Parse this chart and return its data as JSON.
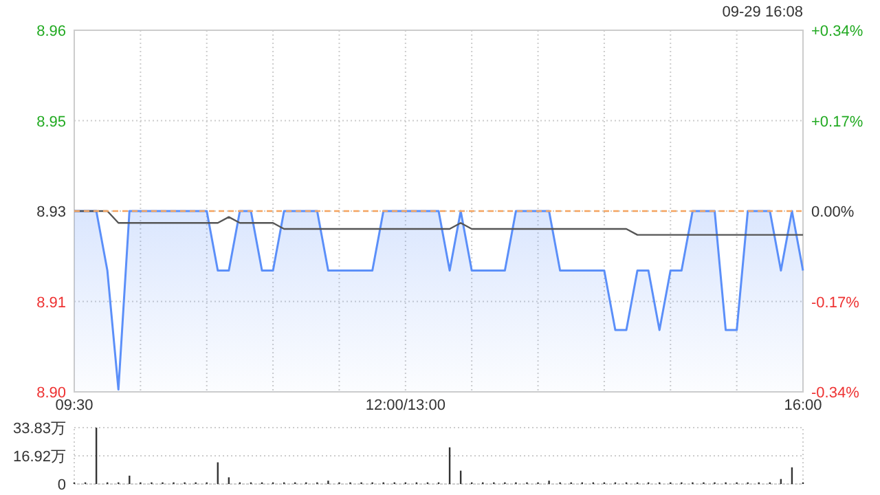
{
  "chart_data": [
    {
      "type": "line",
      "annotations": [
        "09-29 16:08"
      ],
      "categories": [
        "09:30",
        null,
        null,
        null,
        null,
        null,
        null,
        null,
        null,
        null,
        null,
        null,
        null,
        null,
        null,
        null,
        null,
        null,
        null,
        null,
        null,
        null,
        null,
        null,
        null,
        null,
        null,
        null,
        null,
        null,
        "12:00/13:00",
        null,
        null,
        null,
        null,
        null,
        null,
        null,
        null,
        null,
        null,
        null,
        null,
        null,
        null,
        null,
        null,
        null,
        null,
        null,
        null,
        null,
        null,
        null,
        null,
        null,
        null,
        null,
        null,
        null,
        null,
        null,
        null,
        null,
        null,
        null,
        "16:00"
      ],
      "ylim": [
        8.8996,
        8.9604
      ],
      "yticks": [
        {
          "value": 8.8996,
          "label": "8.90"
        },
        {
          "value": 8.9148,
          "label": "8.91"
        },
        8.93,
        {
          "value": 8.9452,
          "label": "8.95"
        },
        {
          "value": 8.9604,
          "label": "8.96"
        }
      ],
      "y2lim": [
        -0.34,
        0.34
      ],
      "y2ticks": [
        {
          "value": -0.34,
          "label": "-0.34%"
        },
        {
          "value": -0.17,
          "label": "-0.17%"
        },
        {
          "value": 0,
          "label": "0.00%"
        },
        {
          "value": 0.17,
          "label": "+0.17%"
        },
        {
          "value": 0.34,
          "label": "+0.34%"
        }
      ],
      "grid": true,
      "ref_lines": [
        {
          "axis": "y",
          "value": 8.93,
          "color": "#f4a460",
          "line_style": "dashed"
        }
      ],
      "series": [
        {
          "type": "area",
          "color": "#5b8ff9",
          "values": [
            8.93,
            8.93,
            8.93,
            8.92,
            8.9,
            8.93,
            8.93,
            8.93,
            8.93,
            8.93,
            8.93,
            8.93,
            8.93,
            8.92,
            8.92,
            8.93,
            8.93,
            8.92,
            8.92,
            8.93,
            8.93,
            8.93,
            8.93,
            8.92,
            8.92,
            8.92,
            8.92,
            8.92,
            8.93,
            8.93,
            8.93,
            8.93,
            8.93,
            8.93,
            8.92,
            8.93,
            8.92,
            8.92,
            8.92,
            8.92,
            8.93,
            8.93,
            8.93,
            8.93,
            8.92,
            8.92,
            8.92,
            8.92,
            8.92,
            8.91,
            8.91,
            8.92,
            8.92,
            8.91,
            8.92,
            8.92,
            8.93,
            8.93,
            8.93,
            8.91,
            8.91,
            8.93,
            8.93,
            8.93,
            8.92,
            8.93,
            8.92
          ]
        },
        {
          "type": "line",
          "color": "#555555",
          "values": [
            8.93,
            8.93,
            8.93,
            8.93,
            8.928,
            8.928,
            8.928,
            8.928,
            8.928,
            8.928,
            8.928,
            8.928,
            8.928,
            8.928,
            8.929,
            8.928,
            8.928,
            8.928,
            8.928,
            8.927,
            8.927,
            8.927,
            8.927,
            8.927,
            8.927,
            8.927,
            8.927,
            8.927,
            8.927,
            8.927,
            8.927,
            8.927,
            8.927,
            8.927,
            8.927,
            8.928,
            8.927,
            8.927,
            8.927,
            8.927,
            8.927,
            8.927,
            8.927,
            8.927,
            8.927,
            8.927,
            8.927,
            8.927,
            8.927,
            8.927,
            8.927,
            8.926,
            8.926,
            8.926,
            8.926,
            8.926,
            8.926,
            8.926,
            8.926,
            8.926,
            8.926,
            8.926,
            8.926,
            8.926,
            8.926,
            8.926,
            8.926
          ]
        }
      ]
    },
    {
      "type": "bar",
      "ylim": [
        0,
        33.83
      ],
      "categories": [
        null,
        null,
        null,
        null,
        null,
        null,
        null,
        null,
        null,
        null,
        null,
        null,
        null,
        null,
        null,
        null,
        null,
        null,
        null,
        null,
        null,
        null,
        null,
        null,
        null,
        null,
        null,
        null,
        null,
        null,
        null,
        null,
        null,
        null,
        null,
        null,
        null,
        null,
        null,
        null,
        null,
        null,
        null,
        null,
        null,
        null,
        null,
        null,
        null,
        null,
        null,
        null,
        null,
        null,
        null,
        null,
        null,
        null,
        null,
        null,
        null,
        null,
        null,
        null,
        null,
        null,
        null
      ],
      "yticks": [
        0,
        {
          "value": 16.92,
          "label": "16.92万"
        },
        {
          "value": 33.83,
          "label": "33.83万"
        }
      ],
      "tick_labels": "y",
      "grid": "y",
      "color": "#333333",
      "values": [
        1,
        1,
        33.8,
        1,
        1,
        5,
        1,
        1,
        1,
        1,
        1,
        1,
        1,
        13,
        4,
        1,
        1,
        1,
        1,
        1,
        1,
        1,
        1,
        2,
        1,
        1,
        1,
        1,
        1,
        1,
        1,
        1,
        1,
        1,
        22,
        8,
        1,
        1,
        1,
        1,
        1,
        1,
        1,
        2,
        1,
        1,
        1,
        1,
        1,
        1,
        1,
        1,
        1,
        1,
        1,
        1,
        1,
        1,
        1,
        1,
        1,
        1,
        1,
        1,
        3,
        10,
        1
      ]
    }
  ]
}
